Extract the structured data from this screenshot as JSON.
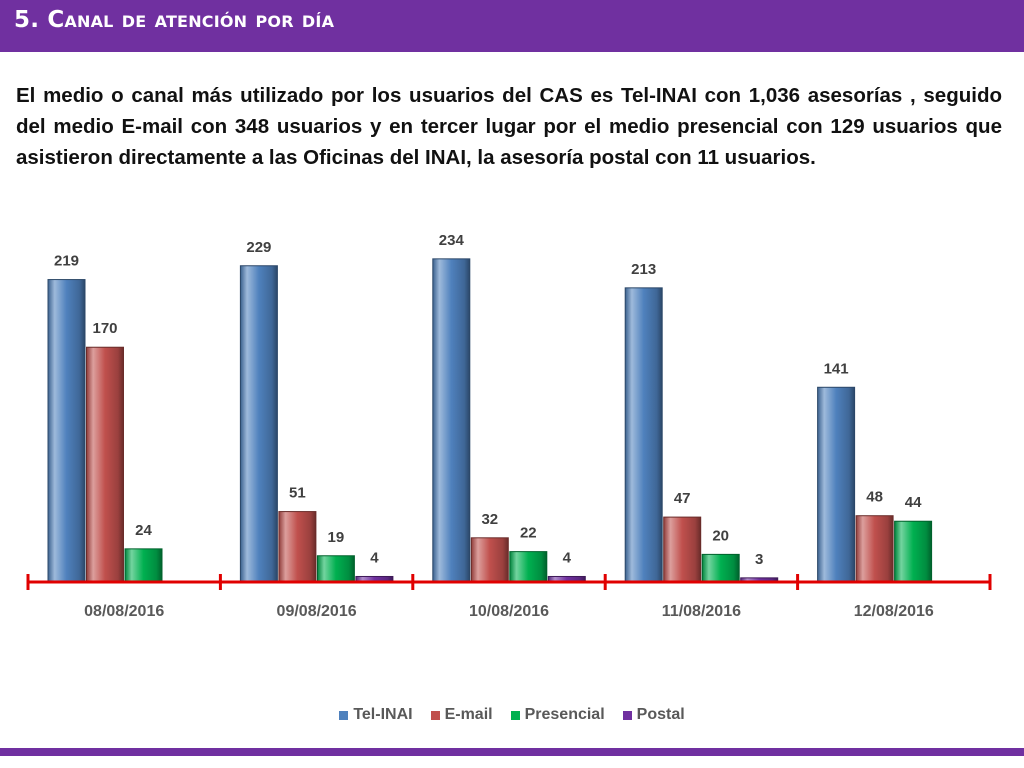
{
  "header": {
    "title": "5. Canal de atención por día",
    "accent_color": "#7030a0"
  },
  "description": "El medio o canal más utilizado por los usuarios del CAS es Tel-INAI con 1,036 asesorías , seguido del medio E-mail con 348 usuarios y en tercer lugar por el medio presencial con 129 usuarios que  asistieron directamente a las Oficinas del INAI, la asesoría postal con 11 usuarios.",
  "chart_data": {
    "type": "bar",
    "title": "",
    "xlabel": "",
    "ylabel": "",
    "categories": [
      "08/08/2016",
      "09/08/2016",
      "10/08/2016",
      "11/08/2016",
      "12/08/2016"
    ],
    "series": [
      {
        "name": "Tel-INAI",
        "color": "#4f81bd",
        "values": [
          219,
          229,
          234,
          213,
          141
        ],
        "labels": [
          "219",
          "229",
          "234",
          "213",
          "141"
        ]
      },
      {
        "name": "E-mail",
        "color": "#c0504d",
        "values": [
          170,
          51,
          32,
          47,
          48
        ],
        "labels": [
          "170",
          "51",
          "32",
          "47",
          "48"
        ]
      },
      {
        "name": "Presencial",
        "color": "#00b050",
        "values": [
          24,
          19,
          22,
          20,
          44
        ],
        "labels": [
          "24",
          "19",
          "22",
          "20",
          "44"
        ]
      },
      {
        "name": "Postal",
        "color": "#7030a0",
        "values": [
          0,
          4,
          4,
          3,
          0
        ],
        "labels": [
          "",
          "4",
          "4",
          "3",
          ""
        ]
      }
    ],
    "ylim": [
      0,
      250
    ],
    "grid": false,
    "data_labels": true,
    "legend": "bottom",
    "axis_color": "#e00000"
  }
}
